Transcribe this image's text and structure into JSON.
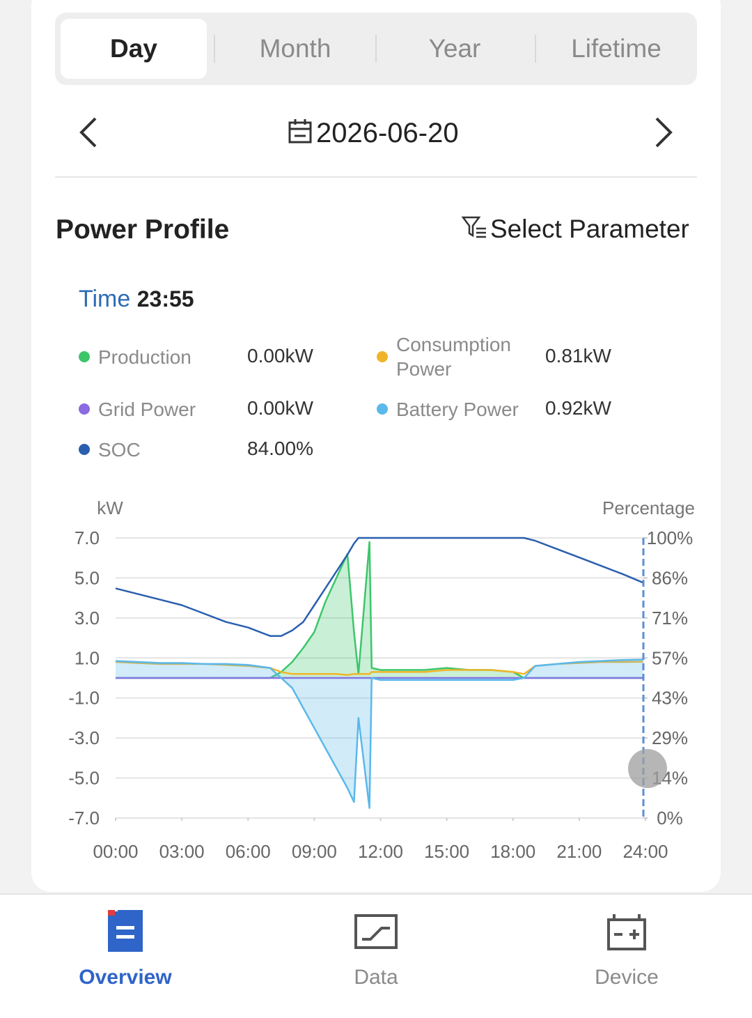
{
  "tabs": [
    "Day",
    "Month",
    "Year",
    "Lifetime"
  ],
  "date": "2026-06-20",
  "section_title": "Power Profile",
  "select_parameter": "Select Parameter",
  "time_label": "Time",
  "time_value": "23:55",
  "readouts": [
    "0.00kW",
    "0.81kW",
    "0.00kW",
    "0.92kW",
    "84.00%"
  ],
  "nav": [
    "Overview",
    "Data",
    "Device"
  ],
  "chart_data": {
    "type": "line",
    "ylabel": "kW",
    "y2label": "Percentage",
    "x": [
      0,
      1,
      2,
      3,
      4,
      5,
      6,
      7,
      7.5,
      8,
      8.5,
      9,
      9.5,
      10,
      10.5,
      10.8,
      11,
      11.5,
      11.6,
      12,
      13,
      14,
      15,
      16,
      17,
      18,
      18.5,
      19,
      20,
      21,
      22,
      23,
      23.9
    ],
    "xlim": [
      0,
      24
    ],
    "xticks": [
      {
        "value": 0,
        "label": "00:00"
      },
      {
        "value": 3,
        "label": "03:00"
      },
      {
        "value": 6,
        "label": "06:00"
      },
      {
        "value": 9,
        "label": "09:00"
      },
      {
        "value": 12,
        "label": "12:00"
      },
      {
        "value": 15,
        "label": "15:00"
      },
      {
        "value": 18,
        "label": "18:00"
      },
      {
        "value": 21,
        "label": "21:00"
      },
      {
        "value": 24,
        "label": "24:00"
      }
    ],
    "ylim": [
      -7,
      7
    ],
    "yticks": [
      {
        "value": 7,
        "label": "7.0"
      },
      {
        "value": 5,
        "label": "5.0"
      },
      {
        "value": 3,
        "label": "3.0"
      },
      {
        "value": 1,
        "label": "1.0"
      },
      {
        "value": -1,
        "label": "-1.0"
      },
      {
        "value": -3,
        "label": "-3.0"
      },
      {
        "value": -5,
        "label": "-5.0"
      },
      {
        "value": -7,
        "label": "-7.0"
      }
    ],
    "y2lim": [
      0,
      100
    ],
    "y2ticks": [
      {
        "value": 100,
        "label": "100%"
      },
      {
        "value": 85.71,
        "label": "86%"
      },
      {
        "value": 71.43,
        "label": "71%"
      },
      {
        "value": 57.14,
        "label": "57%"
      },
      {
        "value": 42.86,
        "label": "43%"
      },
      {
        "value": 28.57,
        "label": "29%"
      },
      {
        "value": 14.29,
        "label": "14%"
      },
      {
        "value": 0,
        "label": "0%"
      }
    ],
    "grid": true,
    "series": [
      {
        "name": "Production",
        "color": "#3cc66a",
        "fill": true,
        "values": [
          0,
          0,
          0,
          0,
          0,
          0,
          0,
          0,
          0.3,
          0.8,
          1.5,
          2.3,
          3.8,
          5.0,
          6.2,
          2.3,
          0.2,
          6.8,
          0.5,
          0.4,
          0.4,
          0.4,
          0.5,
          0.4,
          0.4,
          0.3,
          0,
          0,
          0,
          0,
          0,
          0,
          0
        ]
      },
      {
        "name": "Consumption Power",
        "color": "#f0b429",
        "values": [
          0.8,
          0.75,
          0.7,
          0.7,
          0.7,
          0.65,
          0.6,
          0.5,
          0.3,
          0.2,
          0.2,
          0.2,
          0.2,
          0.2,
          0.15,
          0.2,
          0.2,
          0.2,
          0.3,
          0.3,
          0.3,
          0.3,
          0.4,
          0.4,
          0.4,
          0.3,
          0.2,
          0.6,
          0.7,
          0.75,
          0.8,
          0.8,
          0.81
        ]
      },
      {
        "name": "Grid Power",
        "color": "#8a6be0",
        "values": [
          0,
          0,
          0,
          0,
          0,
          0,
          0,
          0,
          0,
          0,
          0,
          0,
          0,
          0,
          0,
          0,
          0,
          0,
          0,
          0,
          0,
          0,
          0,
          0,
          0,
          0,
          0,
          0,
          0,
          0,
          0,
          0,
          0
        ]
      },
      {
        "name": "Battery Power",
        "color": "#5ab8ea",
        "fill": true,
        "values": [
          0.85,
          0.8,
          0.75,
          0.75,
          0.7,
          0.7,
          0.65,
          0.5,
          0,
          -0.5,
          -1.5,
          -2.5,
          -3.5,
          -4.5,
          -5.5,
          -6.2,
          -2,
          -6.5,
          0,
          -0.1,
          -0.1,
          -0.1,
          -0.1,
          -0.1,
          -0.1,
          -0.1,
          0,
          0.6,
          0.7,
          0.8,
          0.85,
          0.9,
          0.92
        ]
      },
      {
        "name": "SOC",
        "color": "#2a5fae",
        "axis": "y2",
        "values": [
          82,
          80,
          78,
          76,
          73,
          70,
          68,
          65,
          65,
          67,
          70,
          76,
          82,
          88,
          94,
          98,
          100,
          100,
          100,
          100,
          100,
          100,
          100,
          100,
          100,
          100,
          100,
          99,
          96,
          93,
          90,
          87,
          84
        ]
      }
    ]
  }
}
